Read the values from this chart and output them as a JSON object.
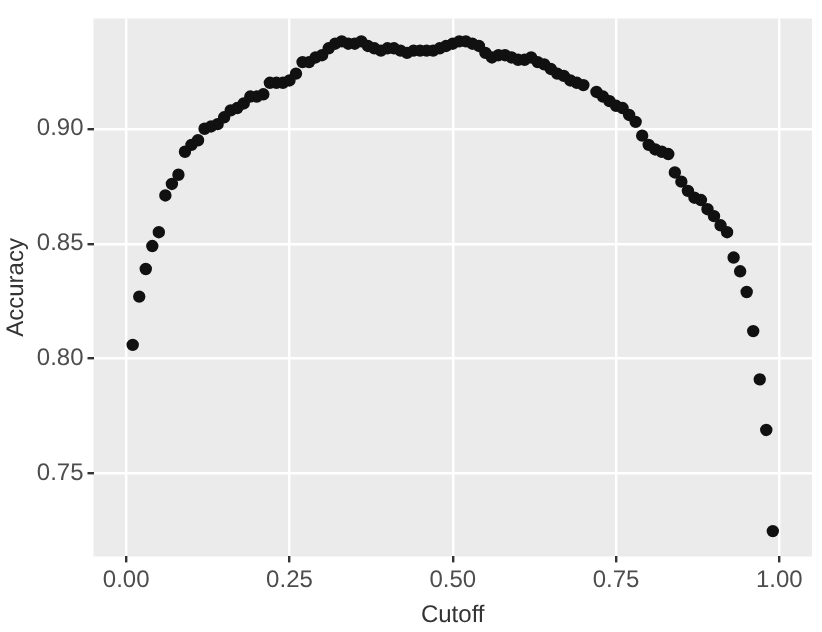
{
  "chart_data": {
    "type": "scatter",
    "xlabel": "Cutoff",
    "ylabel": "Accuracy",
    "xlim": [
      -0.05,
      1.05
    ],
    "ylim": [
      0.714,
      0.948
    ],
    "xticks": [
      {
        "value": 0,
        "label": "0.00"
      },
      {
        "value": 0.25,
        "label": "0.25"
      },
      {
        "value": 0.5,
        "label": "0.50"
      },
      {
        "value": 0.75,
        "label": "0.75"
      },
      {
        "value": 1,
        "label": "1.00"
      }
    ],
    "yticks": [
      {
        "value": 0.75,
        "label": "0.75"
      },
      {
        "value": 0.8,
        "label": "0.80"
      },
      {
        "value": 0.85,
        "label": "0.85"
      },
      {
        "value": 0.9,
        "label": "0.90"
      }
    ],
    "grid": true,
    "legend": false,
    "marker": "circle",
    "series": [
      {
        "color": "#111111",
        "x": [
          0.01,
          0.02,
          0.03,
          0.04,
          0.05,
          0.06,
          0.07,
          0.08,
          0.09,
          0.1,
          0.11,
          0.12,
          0.13,
          0.14,
          0.15,
          0.16,
          0.17,
          0.18,
          0.19,
          0.2,
          0.21,
          0.22,
          0.23,
          0.24,
          0.25,
          0.26,
          0.27,
          0.28,
          0.29,
          0.3,
          0.31,
          0.32,
          0.33,
          0.34,
          0.35,
          0.36,
          0.37,
          0.38,
          0.39,
          0.4,
          0.41,
          0.42,
          0.43,
          0.44,
          0.45,
          0.46,
          0.47,
          0.48,
          0.49,
          0.5,
          0.51,
          0.52,
          0.53,
          0.54,
          0.55,
          0.56,
          0.57,
          0.58,
          0.59,
          0.6,
          0.61,
          0.62,
          0.63,
          0.64,
          0.65,
          0.66,
          0.67,
          0.68,
          0.69,
          0.7,
          0.72,
          0.73,
          0.74,
          0.75,
          0.76,
          0.77,
          0.78,
          0.79,
          0.8,
          0.81,
          0.82,
          0.83,
          0.84,
          0.85,
          0.86,
          0.87,
          0.88,
          0.89,
          0.9,
          0.91,
          0.92,
          0.93,
          0.94,
          0.95,
          0.96,
          0.97,
          0.98,
          0.99
        ],
        "values": [
          0.806,
          0.827,
          0.839,
          0.849,
          0.855,
          0.871,
          0.876,
          0.88,
          0.89,
          0.893,
          0.895,
          0.9,
          0.901,
          0.902,
          0.905,
          0.908,
          0.909,
          0.911,
          0.914,
          0.914,
          0.915,
          0.92,
          0.92,
          0.92,
          0.921,
          0.924,
          0.929,
          0.929,
          0.931,
          0.932,
          0.935,
          0.937,
          0.938,
          0.937,
          0.937,
          0.938,
          0.936,
          0.935,
          0.934,
          0.935,
          0.935,
          0.934,
          0.933,
          0.934,
          0.934,
          0.934,
          0.934,
          0.935,
          0.936,
          0.937,
          0.938,
          0.938,
          0.937,
          0.936,
          0.933,
          0.931,
          0.932,
          0.932,
          0.931,
          0.93,
          0.93,
          0.931,
          0.929,
          0.928,
          0.926,
          0.924,
          0.923,
          0.921,
          0.92,
          0.919,
          0.916,
          0.914,
          0.912,
          0.91,
          0.909,
          0.906,
          0.903,
          0.897,
          0.893,
          0.891,
          0.89,
          0.889,
          0.881,
          0.877,
          0.873,
          0.87,
          0.869,
          0.865,
          0.862,
          0.858,
          0.855,
          0.844,
          0.838,
          0.829,
          0.812,
          0.791,
          0.769,
          0.725
        ]
      }
    ]
  }
}
